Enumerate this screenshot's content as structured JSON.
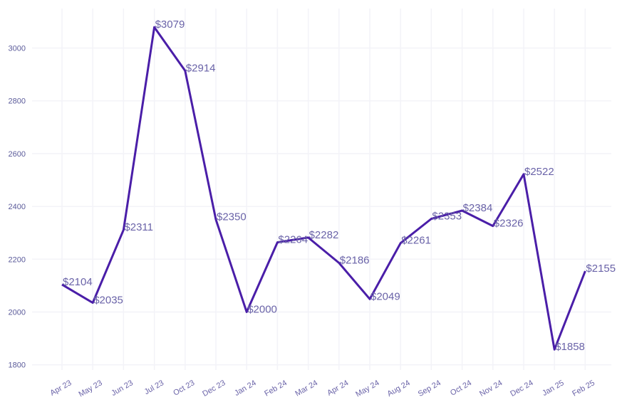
{
  "chart_data": {
    "type": "line",
    "title": "",
    "xlabel": "",
    "ylabel": "",
    "categories": [
      "Apr 23",
      "May 23",
      "Jun 23",
      "Jul 23",
      "Oct 23",
      "Dec 23",
      "Jan 24",
      "Feb 24",
      "Mar 24",
      "Apr 24",
      "May 24",
      "Aug 24",
      "Sep 24",
      "Oct 24",
      "Nov 24",
      "Dec 24",
      "Jan 25",
      "Feb 25"
    ],
    "series": [
      {
        "values": [
          2104,
          2035,
          2311,
          3079,
          2914,
          2350,
          2000,
          2264,
          2282,
          2186,
          2049,
          2261,
          2353,
          2384,
          2326,
          2522,
          1858,
          2155
        ],
        "labels": [
          "$2104",
          "$2035",
          "$2311",
          "$3079",
          "$2914",
          "$2350",
          "$2000",
          "$2264",
          "$2282",
          "$2186",
          "$2049",
          "$2261",
          "$2353",
          "$2384",
          "$2326",
          "$2522",
          "$1858",
          "$2155"
        ]
      }
    ],
    "ylim": [
      1800,
      3100
    ],
    "yticks": [
      1800,
      2000,
      2200,
      2400,
      2600,
      2800,
      3000
    ],
    "grid": true,
    "colors": {
      "line": "#4a1ea8",
      "grid": "#f3f3f8",
      "tick_text": "#6a63a8",
      "label_text": "#6a63a8"
    }
  }
}
